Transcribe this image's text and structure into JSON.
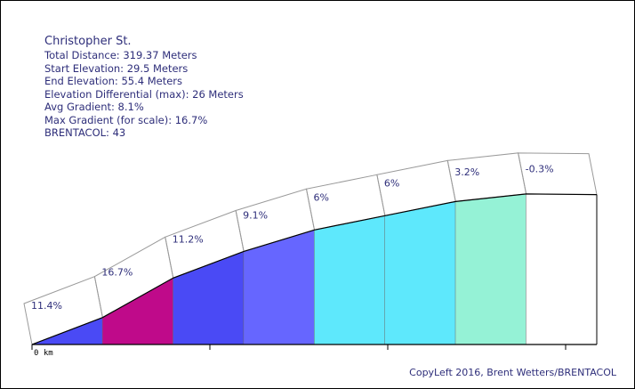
{
  "info": {
    "title": "Christopher St.",
    "lines": [
      "Total Distance: 319.37 Meters",
      "Start Elevation: 29.5 Meters",
      "End Elevation: 55.4 Meters",
      "Elevation Differential (max): 26 Meters",
      "Avg Gradient: 8.1%",
      "Max Gradient (for scale): 16.7%",
      "BRENTACOL: 43"
    ]
  },
  "copyleft": "CopyLeft 2016, Brent Wetters/BRENTACOL",
  "chart_data": {
    "type": "area",
    "title": "Christopher St.",
    "x_start_label": "0 km",
    "x_unit": "meters",
    "y_unit": "meters",
    "distance_total": 319.37,
    "elevation_start": 29.5,
    "elevation_end": 55.4,
    "segments": [
      {
        "gradient_label": "11.4%",
        "gradient": 11.4,
        "color": "#4a4af5"
      },
      {
        "gradient_label": "16.7%",
        "gradient": 16.7,
        "color": "#bf0a8a"
      },
      {
        "gradient_label": "11.2%",
        "gradient": 11.2,
        "color": "#4a4af5"
      },
      {
        "gradient_label": "9.1%",
        "gradient": 9.1,
        "color": "#6666ff"
      },
      {
        "gradient_label": "6%",
        "gradient": 6.0,
        "color": "#5ee8fc"
      },
      {
        "gradient_label": "6%",
        "gradient": 6.0,
        "color": "#5ee8fc"
      },
      {
        "gradient_label": "3.2%",
        "gradient": 3.2,
        "color": "#95f2d6"
      },
      {
        "gradient_label": "-0.3%",
        "gradient": -0.3,
        "color": "#ffffff"
      }
    ]
  }
}
